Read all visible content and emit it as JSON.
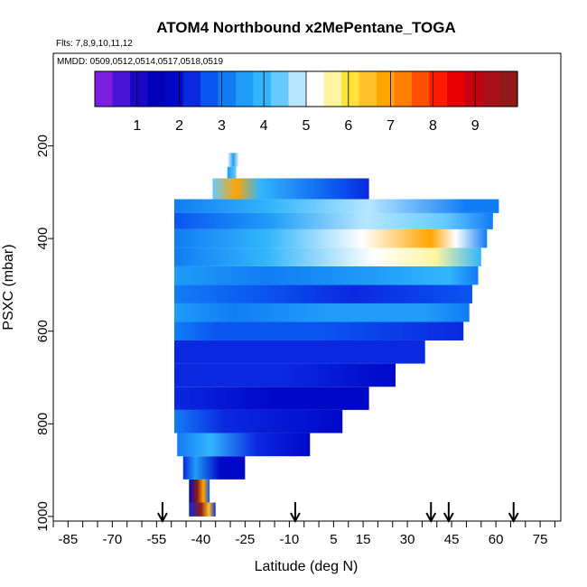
{
  "chart_data": {
    "type": "heatmap",
    "title": "ATOM4 Northbound x2MePentane_TOGA",
    "flights_label": "Flts: 7,8,9,10,11,12",
    "mmdd_label": "MMDD: 0509,0512,0514,0517,0518,0519",
    "xlabel": "Latitude (deg N)",
    "ylabel": "PSXC (mbar)",
    "xlim": [
      -90,
      82
    ],
    "ylim": [
      1010,
      0
    ],
    "x_tick_labels": [
      -85,
      -70,
      -55,
      -40,
      -25,
      -10,
      5,
      15,
      30,
      45,
      60,
      75
    ],
    "x_minor_step": 5,
    "y_tick_labels": [
      200,
      400,
      600,
      800,
      1000
    ],
    "colorbar": {
      "range": [
        0,
        10
      ],
      "tick_labels": [
        1,
        2,
        3,
        4,
        5,
        6,
        7,
        8,
        9
      ],
      "colors": [
        "#7b1fe0",
        "#4a14d8",
        "#1a08c8",
        "#0000b8",
        "#0008c8",
        "#0a28e0",
        "#0a55f0",
        "#127cf5",
        "#1e9cf8",
        "#32b6fb",
        "#66caff",
        "#b6e6ff",
        "#ffffff",
        "#fff5a0",
        "#ffe23a",
        "#ffc22a",
        "#ffa500",
        "#ff7e00",
        "#ff4f00",
        "#ff1a00",
        "#e80000",
        "#c80010",
        "#a8101a",
        "#901a1a"
      ]
    },
    "arrows_latitude": [
      -53,
      -8,
      38,
      44,
      66
    ],
    "bands": [
      {
        "p_top": 920,
        "p_bot": 970,
        "lat_start": -44,
        "lat_end": -37,
        "profile": [
          [
            0,
            2.0
          ],
          [
            0.4,
            9.6
          ],
          [
            0.7,
            7.0
          ],
          [
            1,
            2.5
          ]
        ]
      },
      {
        "p_top": 970,
        "p_bot": 1000,
        "lat_start": -44,
        "lat_end": -35,
        "profile": [
          [
            0,
            2.2
          ],
          [
            0.45,
            9.8
          ],
          [
            0.75,
            6.5
          ],
          [
            1,
            2.3
          ]
        ]
      },
      {
        "p_top": 870,
        "p_bot": 920,
        "lat_start": -46,
        "lat_end": -25,
        "profile": [
          [
            0,
            2.3
          ],
          [
            0.2,
            3.5
          ],
          [
            0.6,
            2.0
          ],
          [
            1,
            1.7
          ]
        ]
      },
      {
        "p_top": 820,
        "p_bot": 870,
        "lat_start": -48,
        "lat_end": -3,
        "profile": [
          [
            0,
            3.2
          ],
          [
            0.25,
            4.0
          ],
          [
            0.6,
            2.2
          ],
          [
            1,
            1.7
          ]
        ]
      },
      {
        "p_top": 770,
        "p_bot": 820,
        "lat_start": -49,
        "lat_end": 8,
        "profile": [
          [
            0,
            3.0
          ],
          [
            0.3,
            2.4
          ],
          [
            1,
            1.8
          ]
        ]
      },
      {
        "p_top": 720,
        "p_bot": 770,
        "lat_start": -49,
        "lat_end": 17,
        "profile": [
          [
            0,
            2.2
          ],
          [
            0.5,
            2.0
          ],
          [
            1,
            1.9
          ]
        ]
      },
      {
        "p_top": 670,
        "p_bot": 720,
        "lat_start": -49,
        "lat_end": 26,
        "profile": [
          [
            0,
            2.4
          ],
          [
            0.5,
            2.1
          ],
          [
            1,
            2.0
          ]
        ]
      },
      {
        "p_top": 620,
        "p_bot": 670,
        "lat_start": -49,
        "lat_end": 36,
        "profile": [
          [
            0,
            2.2
          ],
          [
            0.5,
            2.3
          ],
          [
            1,
            2.1
          ]
        ]
      },
      {
        "p_top": 580,
        "p_bot": 620,
        "lat_start": -49,
        "lat_end": 49,
        "profile": [
          [
            0,
            3.2
          ],
          [
            0.15,
            2.8
          ],
          [
            0.5,
            2.5
          ],
          [
            1,
            2.3
          ]
        ]
      },
      {
        "p_top": 540,
        "p_bot": 580,
        "lat_start": -49,
        "lat_end": 51,
        "profile": [
          [
            0,
            3.6
          ],
          [
            0.2,
            3.0
          ],
          [
            0.5,
            3.4
          ],
          [
            0.85,
            3.7
          ],
          [
            1,
            3.2
          ]
        ]
      },
      {
        "p_top": 500,
        "p_bot": 540,
        "lat_start": -49,
        "lat_end": 52,
        "profile": [
          [
            0,
            3.3
          ],
          [
            0.3,
            2.6
          ],
          [
            0.6,
            2.4
          ],
          [
            1,
            2.6
          ]
        ]
      },
      {
        "p_top": 460,
        "p_bot": 500,
        "lat_start": -49,
        "lat_end": 54,
        "profile": [
          [
            0,
            3.4
          ],
          [
            0.3,
            3.0
          ],
          [
            0.65,
            3.6
          ],
          [
            0.9,
            4.0
          ],
          [
            1,
            3.3
          ]
        ]
      },
      {
        "p_top": 420,
        "p_bot": 460,
        "lat_start": -49,
        "lat_end": 55,
        "profile": [
          [
            0,
            3.0
          ],
          [
            0.3,
            3.8
          ],
          [
            0.65,
            5.4
          ],
          [
            0.85,
            5.6
          ],
          [
            1,
            3.8
          ]
        ]
      },
      {
        "p_top": 380,
        "p_bot": 420,
        "lat_start": -49,
        "lat_end": 57,
        "profile": [
          [
            0,
            3.0
          ],
          [
            0.3,
            3.8
          ],
          [
            0.6,
            5.2
          ],
          [
            0.82,
            6.9
          ],
          [
            0.9,
            5.0
          ],
          [
            1,
            3.3
          ]
        ]
      },
      {
        "p_top": 345,
        "p_bot": 380,
        "lat_start": -49,
        "lat_end": 59,
        "profile": [
          [
            0,
            2.5
          ],
          [
            0.3,
            3.5
          ],
          [
            0.6,
            4.8
          ],
          [
            0.85,
            4.2
          ],
          [
            1,
            3.0
          ]
        ]
      },
      {
        "p_top": 315,
        "p_bot": 345,
        "lat_start": -49,
        "lat_end": 61,
        "profile": [
          [
            0,
            3.2
          ],
          [
            0.3,
            3.8
          ],
          [
            0.6,
            4.7
          ],
          [
            0.9,
            3.2
          ],
          [
            1,
            3.0
          ]
        ]
      },
      {
        "p_top": 270,
        "p_bot": 315,
        "lat_start": -36,
        "lat_end": 17,
        "profile": [
          [
            0,
            4.2
          ],
          [
            0.15,
            6.8
          ],
          [
            0.3,
            3.8
          ],
          [
            0.8,
            2.6
          ],
          [
            1,
            2.4
          ]
        ]
      },
      {
        "p_top": 245,
        "p_bot": 270,
        "lat_start": -31,
        "lat_end": -28,
        "profile": [
          [
            0,
            3.5
          ],
          [
            1,
            4.5
          ]
        ]
      },
      {
        "p_top": 215,
        "p_bot": 245,
        "lat_start": -31,
        "lat_end": -27,
        "profile": [
          [
            0,
            5.0
          ],
          [
            0.5,
            3.5
          ],
          [
            1,
            5.0
          ]
        ]
      }
    ]
  }
}
